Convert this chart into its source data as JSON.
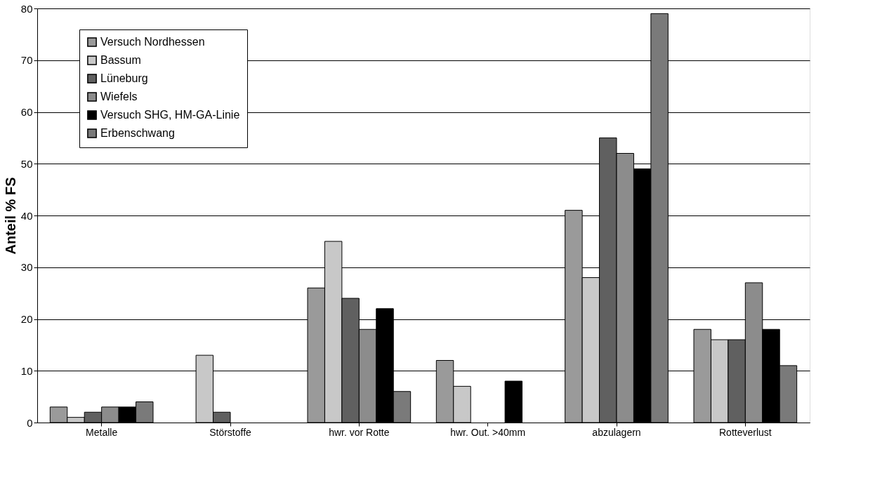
{
  "chart_data": {
    "type": "bar",
    "ylabel": "Anteil % FS",
    "categories": [
      "Metalle",
      "Störstoffe",
      "hwr. vor Rotte",
      "hwr. Out. >40mm",
      "abzulagern",
      "Rotteverlust"
    ],
    "series": [
      {
        "name": "Versuch Nordhessen",
        "color": "#9a9a9a",
        "values": [
          3,
          null,
          26,
          12,
          41,
          18
        ]
      },
      {
        "name": "Bassum",
        "color": "#c8c8c8",
        "values": [
          1,
          13,
          35,
          7,
          28,
          16
        ]
      },
      {
        "name": "Lüneburg",
        "color": "#606060",
        "values": [
          2,
          2,
          24,
          null,
          55,
          16
        ]
      },
      {
        "name": "Wiefels",
        "color": "#8c8c8c",
        "values": [
          3,
          null,
          18,
          null,
          52,
          27
        ]
      },
      {
        "name": "Versuch SHG, HM-GA-Linie",
        "color": "#000000",
        "values": [
          3,
          null,
          22,
          8,
          49,
          18
        ]
      },
      {
        "name": "Erbenschwang",
        "color": "#7a7a7a",
        "values": [
          4,
          null,
          6,
          null,
          79,
          11
        ]
      }
    ],
    "ylim": [
      0,
      80
    ],
    "yticks": [
      0,
      10,
      20,
      30,
      40,
      50,
      60,
      70,
      80
    ],
    "grid": "y",
    "legend": "top left"
  }
}
